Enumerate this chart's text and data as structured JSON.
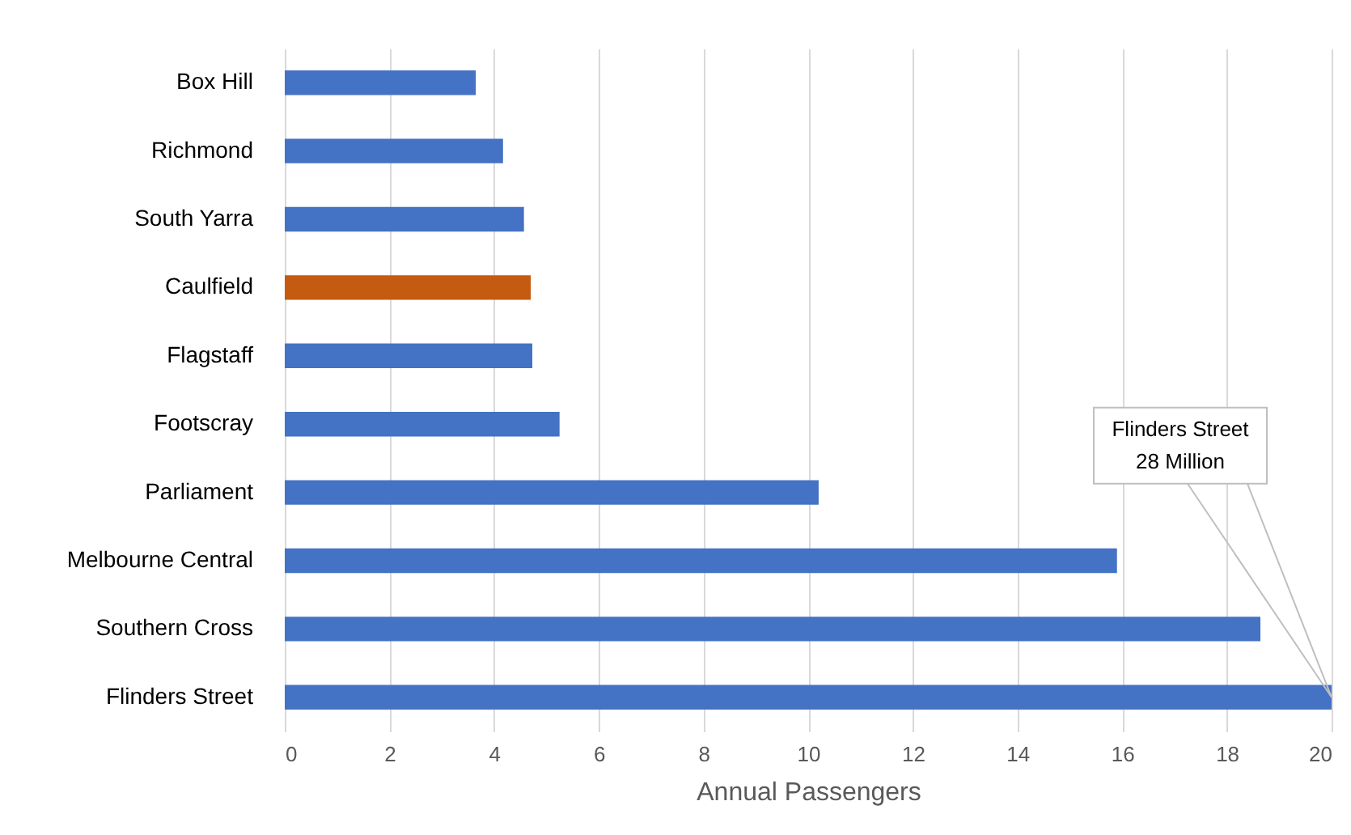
{
  "chart_data": {
    "type": "bar",
    "orientation": "horizontal",
    "xlabel": "Annual Passengers",
    "categories": [
      "Box Hill",
      "Richmond",
      "South Yarra",
      "Caulfield",
      "Flagstaff",
      "Footscray",
      "Parliament",
      "Melbourne Central",
      "Southern Cross",
      "Flinders Street"
    ],
    "values": [
      3.65,
      4.17,
      4.57,
      4.7,
      4.73,
      5.25,
      10.2,
      15.9,
      18.64,
      20
    ],
    "colors": [
      "#4472c4",
      "#4472c4",
      "#4472c4",
      "#c55a11",
      "#4472c4",
      "#4472c4",
      "#4472c4",
      "#4472c4",
      "#4472c4",
      "#4472c4"
    ],
    "xlim": [
      0,
      20
    ],
    "xticks": [
      0,
      2,
      4,
      6,
      8,
      10,
      12,
      14,
      16,
      18,
      20
    ],
    "grid": "x",
    "annotations": [
      {
        "text": "Flinders Street\n28 Million",
        "x": 20,
        "y": "Flinders Street"
      }
    ]
  }
}
